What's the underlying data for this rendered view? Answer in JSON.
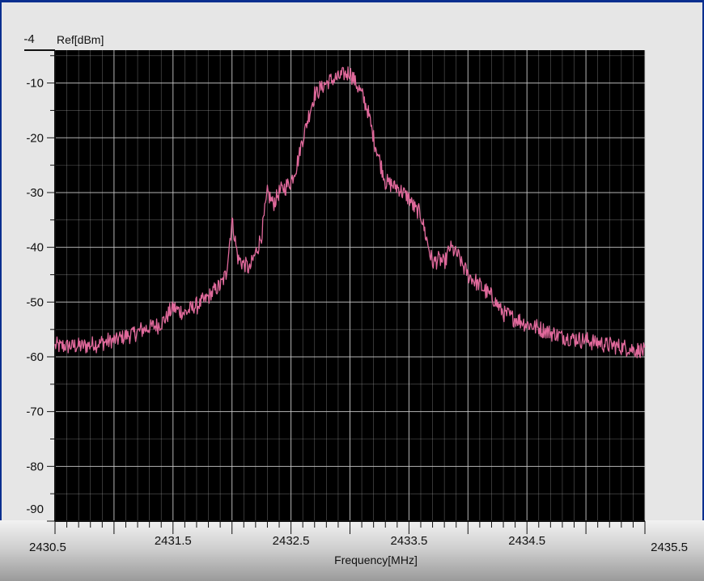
{
  "chart_data": {
    "type": "line",
    "ref_label": "Ref[dBm]",
    "ref_value": "-4",
    "xlabel": "Frequency[MHz]",
    "ylabel": "Ref[dBm]",
    "xlim": [
      2430.5,
      2435.5
    ],
    "ylim": [
      -90,
      -4
    ],
    "grid": true,
    "x_ticks": [
      "2430.5",
      "2431.5",
      "2432.5",
      "2433.5",
      "2434.5",
      "2435.5"
    ],
    "y_ticks": [
      "-10",
      "-20",
      "-30",
      "-40",
      "-50",
      "-60",
      "-70",
      "-80",
      "-90"
    ],
    "colors": {
      "background": "#000000",
      "grid": "#c8c8c8",
      "trace": "#e0699b"
    },
    "series": [
      {
        "x": [
          2430.5,
          2430.75,
          2431.0,
          2431.25,
          2431.4,
          2431.5,
          2431.6,
          2431.75,
          2431.9,
          2431.95,
          2432.0,
          2432.05,
          2432.1,
          2432.15,
          2432.25,
          2432.3,
          2432.35,
          2432.4,
          2432.45,
          2432.5,
          2432.55,
          2432.6,
          2432.65,
          2432.7,
          2432.8,
          2432.9,
          2433.0,
          2433.05,
          2433.1,
          2433.15,
          2433.2,
          2433.25,
          2433.3,
          2433.4,
          2433.5,
          2433.55,
          2433.6,
          2433.7,
          2433.75,
          2433.8,
          2433.85,
          2433.9,
          2434.0,
          2434.1,
          2434.2,
          2434.3,
          2434.5,
          2434.75,
          2435.0,
          2435.25,
          2435.5
        ],
        "y": [
          -58,
          -58,
          -57,
          -55,
          -54,
          -51,
          -52,
          -50,
          -47,
          -45,
          -35,
          -42,
          -43,
          -44,
          -38,
          -30,
          -32,
          -30,
          -29,
          -28,
          -25,
          -20,
          -16,
          -12,
          -10,
          -9,
          -8,
          -10,
          -12,
          -15,
          -20,
          -24,
          -28,
          -29,
          -31,
          -33,
          -34,
          -43,
          -42,
          -43,
          -40,
          -41,
          -45,
          -47,
          -49,
          -52,
          -54,
          -56,
          -57,
          -58,
          -59
        ]
      }
    ]
  }
}
